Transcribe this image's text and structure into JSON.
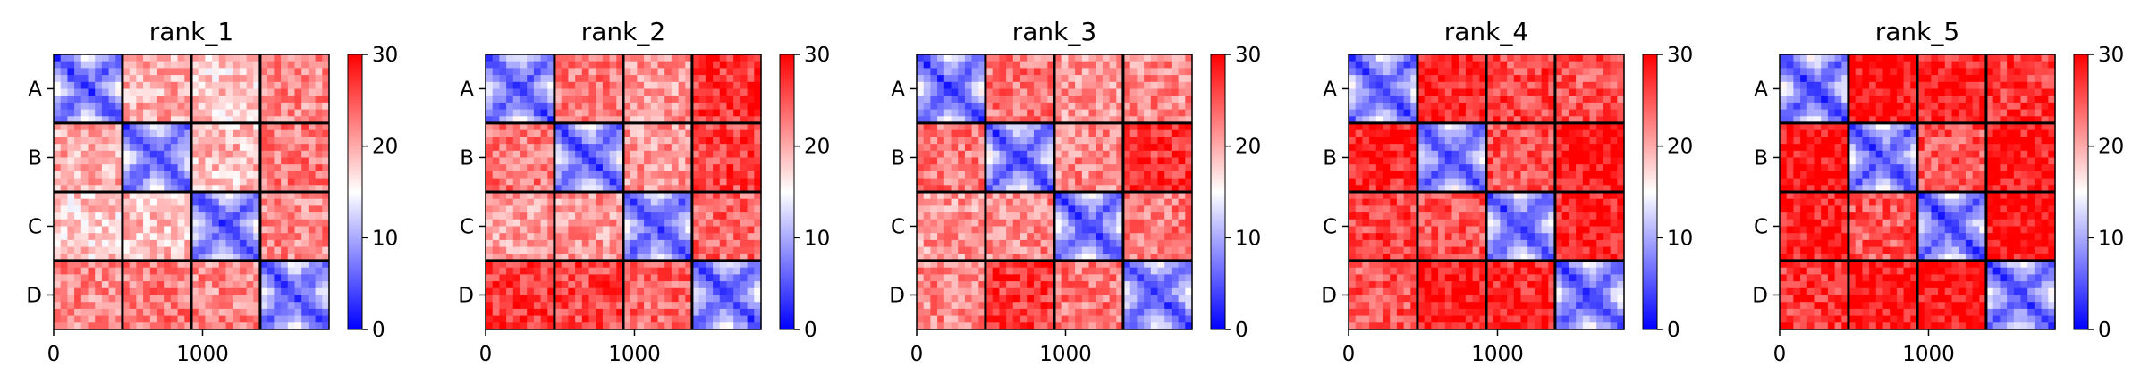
{
  "chart_data": [
    {
      "type": "heatmap",
      "title": "rank_1",
      "xlabel": "",
      "ylabel": "",
      "xlim": [
        0,
        1850
      ],
      "xticks": [
        0,
        1000
      ],
      "xtick_labels": [
        "0",
        "1000"
      ],
      "chains": [
        "A",
        "B",
        "C",
        "D"
      ],
      "chain_boundaries": [
        0,
        462,
        925,
        1387,
        1850
      ],
      "colorbar": {
        "vmin": 0,
        "vmax": 30,
        "ticks": [
          0,
          10,
          20,
          30
        ],
        "colormap": "bwr"
      },
      "block_mean_values": [
        [
          8,
          20,
          18,
          22
        ],
        [
          20,
          8,
          19,
          23
        ],
        [
          18,
          19,
          9,
          22
        ],
        [
          22,
          23,
          22,
          8
        ]
      ]
    },
    {
      "type": "heatmap",
      "title": "rank_2",
      "xlabel": "",
      "ylabel": "",
      "xlim": [
        0,
        1850
      ],
      "xticks": [
        0,
        1000
      ],
      "xtick_labels": [
        "0",
        "1000"
      ],
      "chains": [
        "A",
        "B",
        "C",
        "D"
      ],
      "chain_boundaries": [
        0,
        462,
        925,
        1387,
        1850
      ],
      "colorbar": {
        "vmin": 0,
        "vmax": 30,
        "ticks": [
          0,
          10,
          20,
          30
        ],
        "colormap": "bwr"
      },
      "block_mean_values": [
        [
          8,
          23,
          21,
          27
        ],
        [
          23,
          8,
          21,
          26
        ],
        [
          21,
          21,
          9,
          24
        ],
        [
          27,
          26,
          24,
          8
        ]
      ]
    },
    {
      "type": "heatmap",
      "title": "rank_3",
      "xlabel": "",
      "ylabel": "",
      "xlim": [
        0,
        1850
      ],
      "xticks": [
        0,
        1000
      ],
      "xtick_labels": [
        "0",
        "1000"
      ],
      "chains": [
        "A",
        "B",
        "C",
        "D"
      ],
      "chain_boundaries": [
        0,
        462,
        925,
        1387,
        1850
      ],
      "colorbar": {
        "vmin": 0,
        "vmax": 30,
        "ticks": [
          0,
          10,
          20,
          30
        ],
        "colormap": "bwr"
      },
      "block_mean_values": [
        [
          8,
          23,
          21,
          22
        ],
        [
          23,
          8,
          22,
          27
        ],
        [
          21,
          22,
          9,
          23
        ],
        [
          22,
          27,
          23,
          8
        ]
      ]
    },
    {
      "type": "heatmap",
      "title": "rank_4",
      "xlabel": "",
      "ylabel": "",
      "xlim": [
        0,
        1850
      ],
      "xticks": [
        0,
        1000
      ],
      "xtick_labels": [
        "0",
        "1000"
      ],
      "chains": [
        "A",
        "B",
        "C",
        "D"
      ],
      "chain_boundaries": [
        0,
        462,
        925,
        1387,
        1850
      ],
      "colorbar": {
        "vmin": 0,
        "vmax": 30,
        "ticks": [
          0,
          10,
          20,
          30
        ],
        "colormap": "bwr"
      },
      "block_mean_values": [
        [
          8,
          28,
          26,
          25
        ],
        [
          28,
          8,
          25,
          29
        ],
        [
          26,
          25,
          9,
          28
        ],
        [
          25,
          29,
          28,
          8
        ]
      ]
    },
    {
      "type": "heatmap",
      "title": "rank_5",
      "xlabel": "",
      "ylabel": "",
      "xlim": [
        0,
        1850
      ],
      "xticks": [
        0,
        1000
      ],
      "xtick_labels": [
        "0",
        "1000"
      ],
      "chains": [
        "A",
        "B",
        "C",
        "D"
      ],
      "chain_boundaries": [
        0,
        462,
        925,
        1387,
        1850
      ],
      "colorbar": {
        "vmin": 0,
        "vmax": 30,
        "ticks": [
          0,
          10,
          20,
          30
        ],
        "colormap": "bwr"
      },
      "block_mean_values": [
        [
          8,
          29,
          28,
          27
        ],
        [
          29,
          8,
          25,
          29
        ],
        [
          28,
          25,
          9,
          29
        ],
        [
          27,
          29,
          29,
          8
        ]
      ]
    }
  ]
}
